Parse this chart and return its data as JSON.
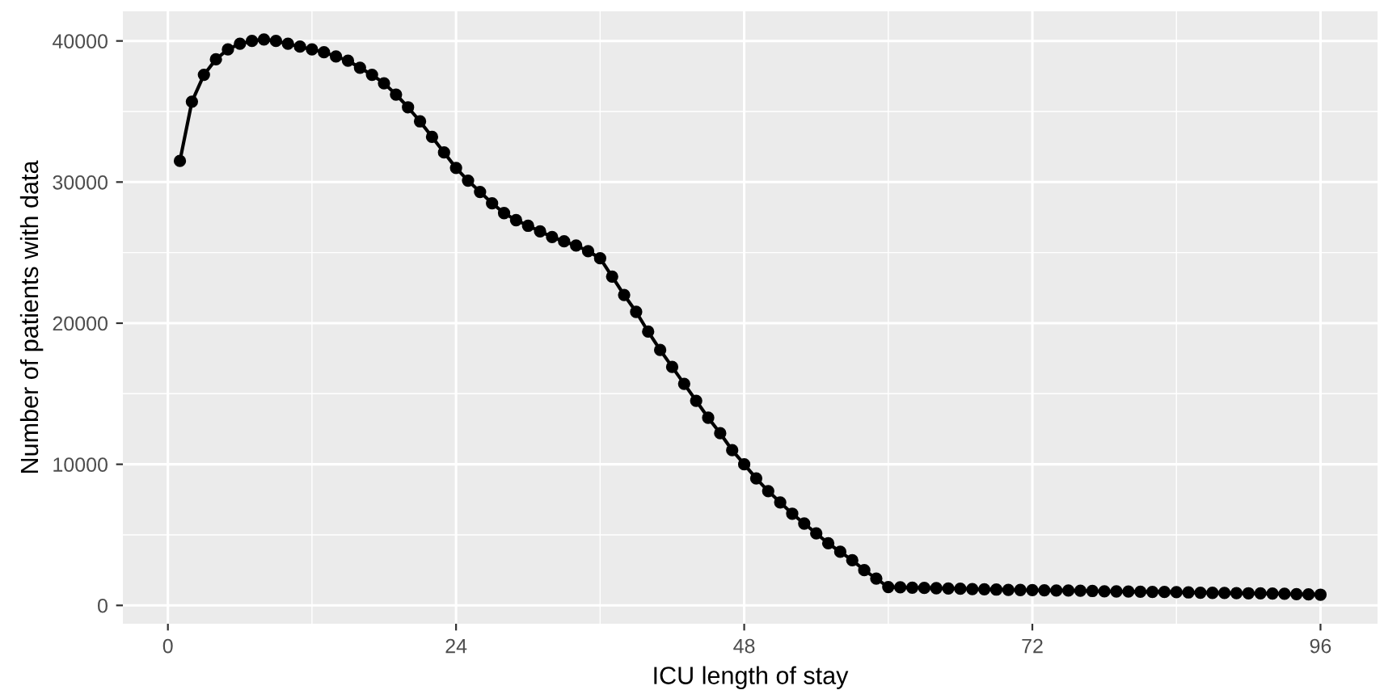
{
  "chart_data": {
    "type": "line",
    "xlabel": "ICU length of stay",
    "ylabel": "Number of patients with data",
    "x": [
      1,
      2,
      3,
      4,
      5,
      6,
      7,
      8,
      9,
      10,
      11,
      12,
      13,
      14,
      15,
      16,
      17,
      18,
      19,
      20,
      21,
      22,
      23,
      24,
      25,
      26,
      27,
      28,
      29,
      30,
      31,
      32,
      33,
      34,
      35,
      36,
      37,
      38,
      39,
      40,
      41,
      42,
      43,
      44,
      45,
      46,
      47,
      48,
      49,
      50,
      51,
      52,
      53,
      54,
      55,
      56,
      57,
      58,
      59,
      60,
      61,
      62,
      63,
      64,
      65,
      66,
      67,
      68,
      69,
      70,
      71,
      72,
      73,
      74,
      75,
      76,
      77,
      78,
      79,
      80,
      81,
      82,
      83,
      84,
      85,
      86,
      87,
      88,
      89,
      90,
      91,
      92,
      93,
      94,
      95,
      96
    ],
    "series": [
      {
        "color": "#000000",
        "values": [
          31500,
          35700,
          37600,
          38700,
          39400,
          39800,
          40000,
          40100,
          40000,
          39800,
          39600,
          39400,
          39200,
          38900,
          38600,
          38100,
          37600,
          37000,
          36200,
          35300,
          34300,
          33200,
          32100,
          31000,
          30100,
          29300,
          28500,
          27800,
          27300,
          26900,
          26500,
          26100,
          25800,
          25500,
          25100,
          24600,
          23300,
          22000,
          20800,
          19400,
          18100,
          16900,
          15700,
          14500,
          13300,
          12200,
          11000,
          10000,
          9000,
          8100,
          7300,
          6500,
          5800,
          5100,
          4400,
          3800,
          3200,
          2500,
          1900,
          1300,
          1280,
          1260,
          1240,
          1220,
          1200,
          1180,
          1160,
          1140,
          1120,
          1100,
          1090,
          1080,
          1070,
          1060,
          1050,
          1040,
          1020,
          1000,
          990,
          980,
          970,
          960,
          950,
          940,
          920,
          900,
          890,
          880,
          870,
          860,
          850,
          840,
          820,
          800,
          780,
          760
        ]
      }
    ],
    "xlim": [
      -3.75,
      100.75
    ],
    "xticks": [
      0,
      24,
      48,
      72,
      96
    ],
    "ylim": [
      -1300,
      42100
    ],
    "yticks": [
      0,
      10000,
      20000,
      30000,
      40000
    ],
    "grid": true,
    "marker": "circle",
    "line_style": "solid",
    "legend": false
  }
}
